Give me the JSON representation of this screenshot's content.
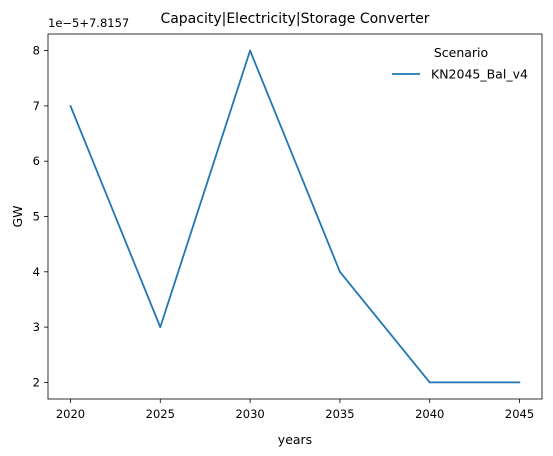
{
  "chart_data": {
    "type": "line",
    "title": "Capacity|Electricity|Storage Converter",
    "xlabel": "years",
    "ylabel": "GW",
    "offset_label": "1e−5+7.8157",
    "x": [
      2020,
      2025,
      2030,
      2035,
      2040,
      2045
    ],
    "xticks": [
      2020,
      2025,
      2030,
      2035,
      2040,
      2045
    ],
    "xlim": [
      2018.75,
      2046.25
    ],
    "yticks": [
      2,
      3,
      4,
      5,
      6,
      7,
      8
    ],
    "ylim": [
      1.7,
      8.3
    ],
    "grid": false,
    "legend": {
      "title": "Scenario",
      "placement": "upper right"
    },
    "series": [
      {
        "name": "KN2045_Bal_v4",
        "color": "#1f77b4",
        "values": [
          7,
          3,
          8,
          4,
          2,
          2
        ]
      }
    ]
  }
}
